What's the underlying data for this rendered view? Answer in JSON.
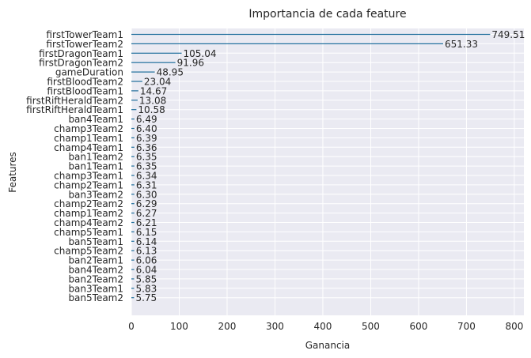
{
  "chart_data": {
    "type": "bar",
    "orientation": "horizontal",
    "title": "Importancia de cada feature",
    "xlabel": "Ganancia",
    "ylabel": "Features",
    "xlim": [
      0,
      820
    ],
    "xticks": [
      0,
      100,
      200,
      300,
      400,
      500,
      600,
      700,
      800
    ],
    "grid": true,
    "legend": "none",
    "colors": {
      "bar": "#1f6e9c",
      "background": "#eaeaf2",
      "grid": "#ffffff",
      "text": "#262626"
    },
    "categories": [
      "firstTowerTeam1",
      "firstTowerTeam2",
      "firstDragonTeam1",
      "firstDragonTeam2",
      "gameDuration",
      "firstBloodTeam2",
      "firstBloodTeam1",
      "firstRiftHeraldTeam2",
      "firstRiftHeraldTeam1",
      "ban4Team1",
      "champ3Team2",
      "champ1Team1",
      "champ4Team1",
      "ban1Team2",
      "ban1Team1",
      "champ3Team1",
      "champ2Team1",
      "ban3Team2",
      "champ2Team2",
      "champ1Team2",
      "champ4Team2",
      "champ5Team1",
      "ban5Team1",
      "champ5Team2",
      "ban2Team1",
      "ban4Team2",
      "ban2Team2",
      "ban3Team1",
      "ban5Team2"
    ],
    "values": [
      749.51,
      651.33,
      105.04,
      91.96,
      48.95,
      23.04,
      14.67,
      13.08,
      10.58,
      6.49,
      6.4,
      6.39,
      6.36,
      6.35,
      6.35,
      6.34,
      6.31,
      6.3,
      6.29,
      6.27,
      6.21,
      6.15,
      6.14,
      6.13,
      6.06,
      6.04,
      5.85,
      5.83,
      5.75
    ],
    "value_labels": [
      "749.51",
      "651.33",
      "105.04",
      "91.96",
      "48.95",
      "23.04",
      "14.67",
      "13.08",
      "10.58",
      "6.49",
      "6.40",
      "6.39",
      "6.36",
      "6.35",
      "6.35",
      "6.34",
      "6.31",
      "6.30",
      "6.29",
      "6.27",
      "6.21",
      "6.15",
      "6.14",
      "6.13",
      "6.06",
      "6.04",
      "5.85",
      "5.83",
      "5.75"
    ]
  }
}
